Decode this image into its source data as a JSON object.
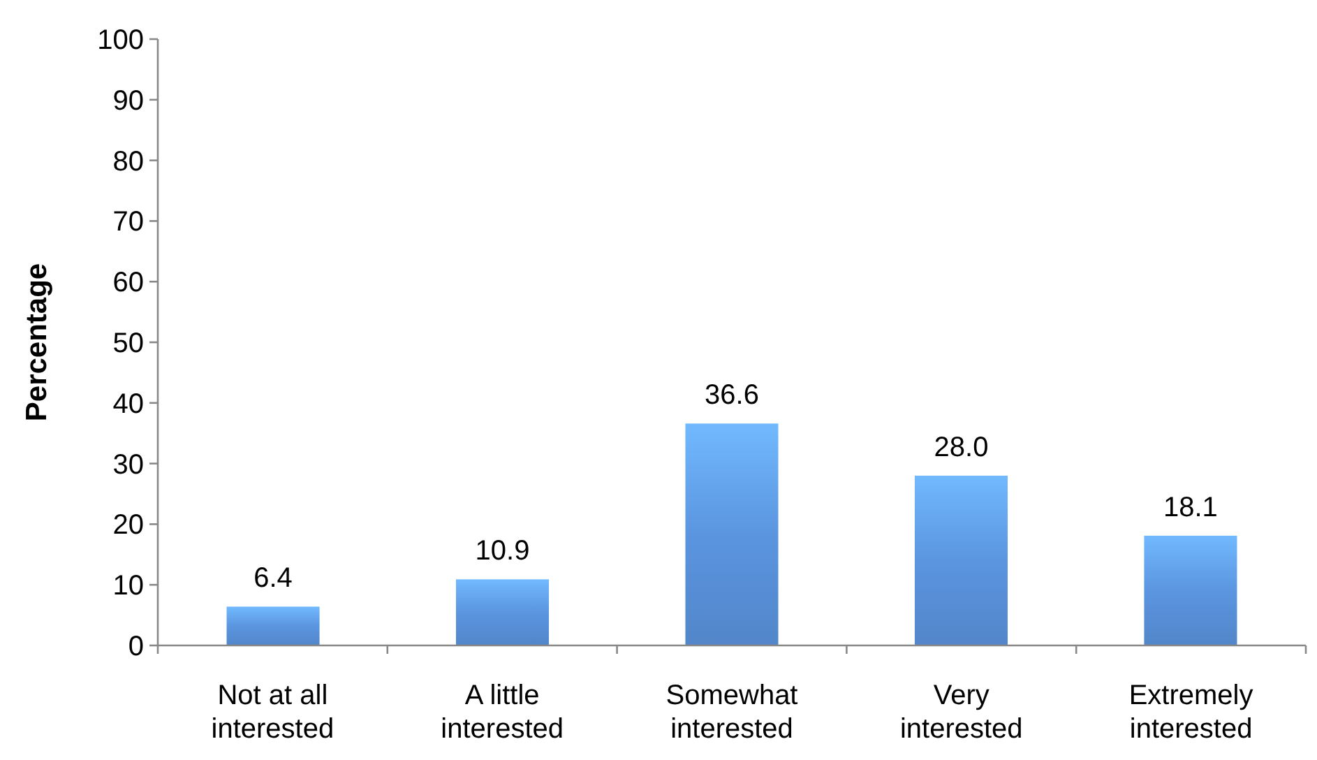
{
  "chart_data": {
    "type": "bar",
    "ylabel": "Percentage",
    "categories": [
      "Not at all interested",
      "A little interested",
      "Somewhat interested",
      "Very interested",
      "Extremely interested"
    ],
    "values": [
      6.4,
      10.9,
      36.6,
      28.0,
      18.1
    ],
    "value_labels": [
      "6.4",
      "10.9",
      "36.6",
      "28.0",
      "18.1"
    ],
    "color": "#5b95e0",
    "ylim": [
      0,
      100
    ],
    "yticks": [
      0,
      10,
      20,
      30,
      40,
      50,
      60,
      70,
      80,
      90,
      100
    ]
  }
}
